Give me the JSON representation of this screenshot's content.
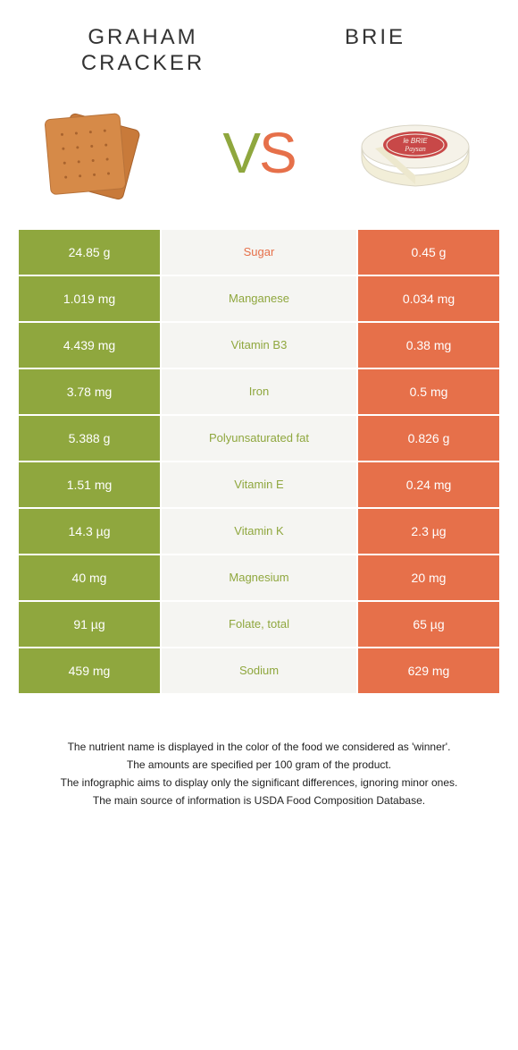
{
  "header": {
    "left_title": "Graham cracker",
    "right_title": "Brie"
  },
  "vs": {
    "v": "V",
    "s": "S"
  },
  "colors": {
    "left": "#8fa73e",
    "right": "#e6704a",
    "mid_bg": "#f5f5f2",
    "border": "#ffffff"
  },
  "rows": [
    {
      "left": "24.85 g",
      "label": "Sugar",
      "right": "0.45 g",
      "winner": "right"
    },
    {
      "left": "1.019 mg",
      "label": "Manganese",
      "right": "0.034 mg",
      "winner": "left"
    },
    {
      "left": "4.439 mg",
      "label": "Vitamin B3",
      "right": "0.38 mg",
      "winner": "left"
    },
    {
      "left": "3.78 mg",
      "label": "Iron",
      "right": "0.5 mg",
      "winner": "left"
    },
    {
      "left": "5.388 g",
      "label": "Polyunsaturated fat",
      "right": "0.826 g",
      "winner": "left"
    },
    {
      "left": "1.51 mg",
      "label": "Vitamin E",
      "right": "0.24 mg",
      "winner": "left"
    },
    {
      "left": "14.3 µg",
      "label": "Vitamin K",
      "right": "2.3 µg",
      "winner": "left"
    },
    {
      "left": "40 mg",
      "label": "Magnesium",
      "right": "20 mg",
      "winner": "left"
    },
    {
      "left": "91 µg",
      "label": "Folate, total",
      "right": "65 µg",
      "winner": "left"
    },
    {
      "left": "459 mg",
      "label": "Sodium",
      "right": "629 mg",
      "winner": "left"
    }
  ],
  "footer": {
    "line1": "The nutrient name is displayed in the color of the food we considered as 'winner'.",
    "line2": "The amounts are specified per 100 gram of the product.",
    "line3": "The infographic aims to display only the significant differences, ignoring minor ones.",
    "line4": "The main source of information is USDA Food Composition Database."
  },
  "brie_label": {
    "top": "le BRIE",
    "bottom": "Paysan"
  }
}
